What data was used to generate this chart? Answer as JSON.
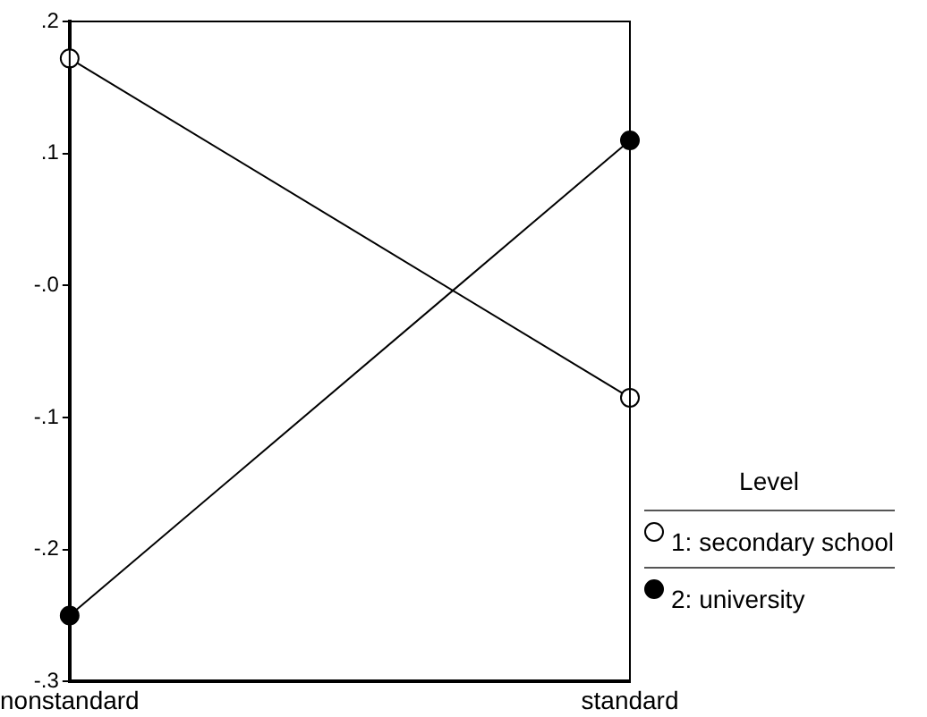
{
  "chart_data": {
    "type": "line",
    "categories": [
      "nonstandard",
      "standard"
    ],
    "series": [
      {
        "name": "1: secondary school",
        "color": "#000000",
        "values": [
          0.172,
          -0.085
        ]
      },
      {
        "name": "2: university",
        "color": "#000000",
        "values": [
          -0.25,
          0.11
        ]
      }
    ],
    "ylim": [
      -0.3,
      0.2
    ],
    "yticks": [
      {
        "value": -0.3,
        "label": "-.3"
      },
      {
        "value": -0.2,
        "label": "-.2"
      },
      {
        "value": -0.1,
        "label": "-.1"
      },
      {
        "value": 0,
        "label": "-.0"
      },
      {
        "value": 0.1,
        "label": ".1"
      },
      {
        "value": 0.2,
        "label": ".2"
      }
    ],
    "legend_title": "Level",
    "legend": "bottom right",
    "marker": "circle",
    "line_style": "solid",
    "grid": false
  }
}
